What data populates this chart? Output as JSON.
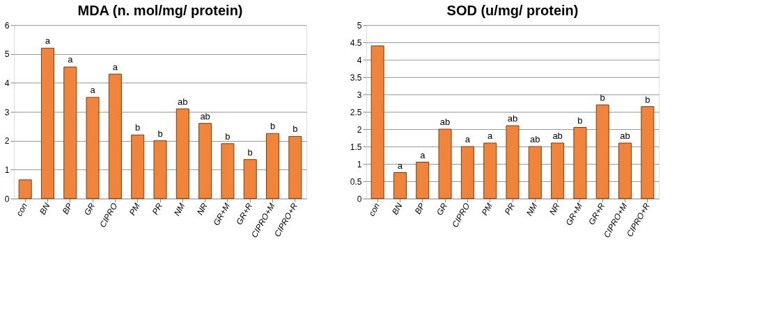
{
  "chart_data": [
    {
      "type": "bar",
      "title": "MDA  (n. mol/mg/ protein)",
      "categories": [
        "con",
        "BN",
        "BP",
        "GR",
        "CIPRO",
        "PM",
        "PR",
        "NM",
        "NR",
        "GR+M",
        "GR+R",
        "CIPRO+M",
        "CIPRO+R"
      ],
      "series": [
        {
          "color": "#f0843a",
          "values": [
            0.65,
            5.2,
            4.55,
            3.5,
            4.3,
            2.2,
            2.0,
            3.1,
            2.6,
            1.9,
            1.35,
            2.25,
            2.15
          ],
          "value_labels": [
            null,
            "a",
            "a",
            "a",
            "a",
            "b",
            "b",
            "ab",
            "ab",
            "b",
            "b",
            "b",
            "b"
          ]
        }
      ],
      "ylim": [
        0,
        6
      ],
      "yticks": [
        0,
        1,
        2,
        3,
        4,
        5,
        6
      ],
      "grid": "y",
      "legend": false
    },
    {
      "type": "bar",
      "title": "SOD (u/mg/ protein)",
      "categories": [
        "con",
        "BN",
        "BP",
        "GR",
        "CIPRO",
        "PM",
        "PR",
        "NM",
        "NR",
        "GR+M",
        "GR+R",
        "CIPRO+M",
        "CIPRO+R"
      ],
      "series": [
        {
          "color": "#f0843a",
          "values": [
            4.4,
            0.75,
            1.05,
            2.0,
            1.5,
            1.6,
            2.1,
            1.5,
            1.6,
            2.05,
            2.7,
            1.6,
            2.65
          ],
          "value_labels": [
            null,
            "a",
            "a",
            "ab",
            "a",
            "a",
            "ab",
            "ab",
            "ab",
            "b",
            "b",
            "ab",
            "b"
          ]
        }
      ],
      "ylim": [
        0,
        5
      ],
      "yticks": [
        0,
        0.5,
        1,
        1.5,
        2,
        2.5,
        3,
        3.5,
        4,
        4.5,
        5
      ],
      "grid": "y",
      "legend": false
    }
  ]
}
